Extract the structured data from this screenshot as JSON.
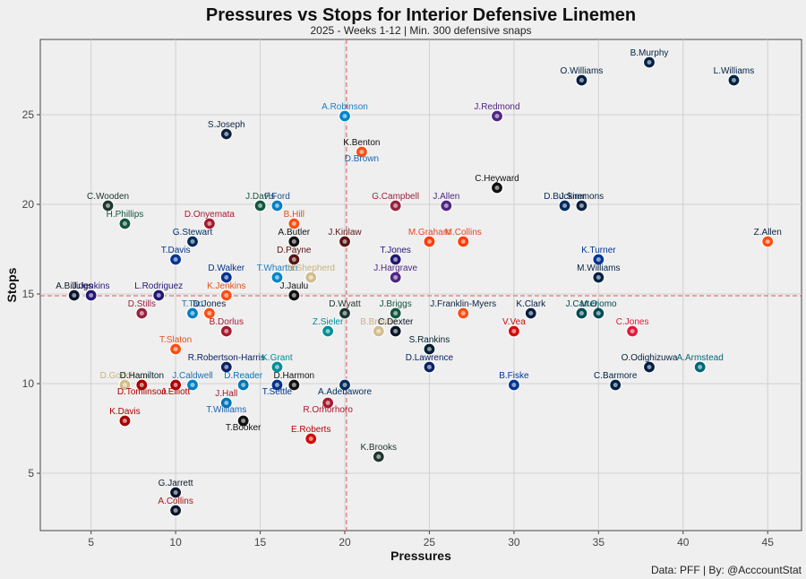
{
  "chart_data": {
    "type": "scatter",
    "title": "Pressures vs Stops for Interior Defensive Linemen",
    "subtitle": "2025 - Weeks 1-12 | Min. 300 defensive snaps",
    "xlabel": "Pressures",
    "ylabel": "Stops",
    "caption": "Data: PFF | By: @AcccountStat",
    "xlim": [
      2,
      47
    ],
    "ylim": [
      1.8,
      29.2
    ],
    "xticks": [
      5,
      10,
      15,
      20,
      25,
      30,
      35,
      40,
      45
    ],
    "yticks": [
      5,
      10,
      15,
      20,
      25
    ],
    "grid": true,
    "reference_lines": {
      "x": 20.1,
      "y": 14.9,
      "color": "#e05555",
      "style": "dashed"
    },
    "team_colors": {
      "SEA": "#002244",
      "DAL": "#041e42",
      "CAR": "#0085ca",
      "MIN": "#4f2683",
      "TEN": "#0c2340",
      "PIT": "#111111",
      "LV": "#111111",
      "NE": "#002244",
      "ARI": "#97233f",
      "BAL": "#241773",
      "LAC": "#0080c6",
      "NYJ": "#125740",
      "ATL": "#a71930",
      "CHI": "#0b162a",
      "GB": "#203731",
      "WAS": "#5a1414",
      "CIN": "#fb4f14",
      "IND": "#002c5f",
      "LAR": "#003594",
      "BUF": "#00338d",
      "CLE": "#ff3c00",
      "NO": "#d3bc8d",
      "DEN": "#fb4f14",
      "HOU": "#03202f",
      "MIA": "#008e97",
      "NYG": "#0b2265",
      "KC": "#e31837",
      "JAX": "#006778",
      "SF": "#aa0000",
      "DET": "#0076b6",
      "TB": "#d50a0a",
      "PHI": "#004c54"
    },
    "points": [
      {
        "label": "B.Murphy",
        "x": 38,
        "y": 28,
        "team": "SEA",
        "color": "#002244"
      },
      {
        "label": "L.Williams",
        "x": 43,
        "y": 27,
        "team": "SEA",
        "color": "#002244"
      },
      {
        "label": "O.Williams",
        "x": 34,
        "y": 27,
        "team": "DAL",
        "color": "#041e42"
      },
      {
        "label": "A.Robinson",
        "x": 20,
        "y": 25,
        "team": "CAR",
        "color": "#1a7fc1"
      },
      {
        "label": "J.Redmond",
        "x": 29,
        "y": 25,
        "team": "MIN",
        "color": "#4f2683"
      },
      {
        "label": "S.Joseph",
        "x": 13,
        "y": 24,
        "team": "TEN",
        "color": "#0c2340"
      },
      {
        "label": "K.Benton",
        "x": 21,
        "y": 23,
        "team": "PIT",
        "color": "#111111"
      },
      {
        "label": "D.Brown",
        "x": 21,
        "y": 23,
        "team": "DEN",
        "color": "#1a63b0",
        "label_below": true
      },
      {
        "label": "C.Heyward",
        "x": 29,
        "y": 21,
        "team": "PIT",
        "color": "#111111"
      },
      {
        "label": "C.Wooden",
        "x": 6,
        "y": 20,
        "team": "GB",
        "color": "#203731"
      },
      {
        "label": "J.Davis",
        "x": 15,
        "y": 20,
        "team": "NYJ",
        "color": "#125740"
      },
      {
        "label": "P.Ford",
        "x": 16,
        "y": 20,
        "team": "LAC",
        "color": "#1f4e8c"
      },
      {
        "label": "G.Campbell",
        "x": 23,
        "y": 20,
        "team": "ARI",
        "color": "#97233f"
      },
      {
        "label": "J.Allen",
        "x": 26,
        "y": 20,
        "team": "MIN",
        "color": "#4f2683"
      },
      {
        "label": "D.Buckner",
        "x": 33,
        "y": 20,
        "team": "IND",
        "color": "#002c5f"
      },
      {
        "label": "J.Simmons",
        "x": 34,
        "y": 20,
        "team": "TEN",
        "color": "#0c2340"
      },
      {
        "label": "H.Phillips",
        "x": 7,
        "y": 19,
        "team": "NYJ",
        "color": "#125740"
      },
      {
        "label": "D.Onyemata",
        "x": 12,
        "y": 19,
        "team": "ATL",
        "color": "#a71930"
      },
      {
        "label": "B.Hill",
        "x": 17,
        "y": 19,
        "team": "CIN",
        "color": "#e0521a"
      },
      {
        "label": "Z.Allen",
        "x": 45,
        "y": 18,
        "team": "DEN",
        "color": "#0a2343"
      },
      {
        "label": "G.Stewart",
        "x": 11,
        "y": 18,
        "team": "IND",
        "color": "#002c5f"
      },
      {
        "label": "A.Butler",
        "x": 17,
        "y": 18,
        "team": "LV",
        "color": "#111111"
      },
      {
        "label": "J.Kinlaw",
        "x": 20,
        "y": 18,
        "team": "WAS",
        "color": "#5a1414"
      },
      {
        "label": "M.Graham",
        "x": 25,
        "y": 18,
        "team": "CLE",
        "color": "#e5461f"
      },
      {
        "label": "M.Collins",
        "x": 27,
        "y": 18,
        "team": "CLE",
        "color": "#e5461f"
      },
      {
        "label": "T.Davis",
        "x": 10,
        "y": 17,
        "team": "LAR",
        "color": "#003594"
      },
      {
        "label": "D.Payne",
        "x": 17,
        "y": 17,
        "team": "WAS",
        "color": "#5a1414"
      },
      {
        "label": "T.Jones",
        "x": 23,
        "y": 17,
        "team": "BAL",
        "color": "#241773"
      },
      {
        "label": "K.Turner",
        "x": 35,
        "y": 17,
        "team": "LAR",
        "color": "#003594"
      },
      {
        "label": "D.Walker",
        "x": 13,
        "y": 16,
        "team": "BUF",
        "color": "#00338d"
      },
      {
        "label": "T.Wharton",
        "x": 16,
        "y": 16,
        "team": "CAR",
        "color": "#1a7fc1"
      },
      {
        "label": "N.Shepherd",
        "x": 18,
        "y": 16,
        "team": "NO",
        "color": "#c9b27c"
      },
      {
        "label": "J.Hargrave",
        "x": 23,
        "y": 16,
        "team": "MIN",
        "color": "#4f2683"
      },
      {
        "label": "M.Williams",
        "x": 35,
        "y": 16,
        "team": "SEA",
        "color": "#002244"
      },
      {
        "label": "A.Billings",
        "x": 4,
        "y": 15,
        "team": "CHI",
        "color": "#0b162a"
      },
      {
        "label": "J.Jenkins",
        "x": 5,
        "y": 15,
        "team": "BAL",
        "color": "#241773"
      },
      {
        "label": "L.Rodriguez",
        "x": 9,
        "y": 15,
        "team": "BAL",
        "color": "#241773"
      },
      {
        "label": "K.Jenkins",
        "x": 13,
        "y": 15,
        "team": "CIN",
        "color": "#e0521a"
      },
      {
        "label": "J.Jaulu",
        "x": 17,
        "y": 15,
        "team": "LV",
        "color": "#111111"
      },
      {
        "label": "D.Stills",
        "x": 8,
        "y": 14,
        "team": "ARI",
        "color": "#97233f"
      },
      {
        "label": "T.Tart",
        "x": 11,
        "y": 14,
        "team": "LAC",
        "color": "#1f6fb0"
      },
      {
        "label": "D.Jones",
        "x": 12,
        "y": 14,
        "team": "DEN",
        "color": "#0a2343"
      },
      {
        "label": "D.Wyatt",
        "x": 20,
        "y": 14,
        "team": "GB",
        "color": "#203731"
      },
      {
        "label": "J.Briggs",
        "x": 23,
        "y": 14,
        "team": "NYJ",
        "color": "#125740"
      },
      {
        "label": "J.Franklin-Myers",
        "x": 27,
        "y": 14,
        "team": "DEN",
        "color": "#0a2343"
      },
      {
        "label": "K.Clark",
        "x": 31,
        "y": 14,
        "team": "DAL",
        "color": "#041e42"
      },
      {
        "label": "J.Carter",
        "x": 34,
        "y": 14,
        "team": "PHI",
        "color": "#004c54"
      },
      {
        "label": "M.Ojomo",
        "x": 35,
        "y": 14,
        "team": "PHI",
        "color": "#004c54"
      },
      {
        "label": "B.Dorlus",
        "x": 13,
        "y": 13,
        "team": "ATL",
        "color": "#a71930"
      },
      {
        "label": "Z.Sieler",
        "x": 19,
        "y": 13,
        "team": "MIA",
        "color": "#008e97"
      },
      {
        "label": "B.Bresee",
        "x": 22,
        "y": 13,
        "team": "NO",
        "color": "#c9b27c"
      },
      {
        "label": "C.Dexter",
        "x": 23,
        "y": 13,
        "team": "CHI",
        "color": "#0b162a"
      },
      {
        "label": "V.Vea",
        "x": 30,
        "y": 13,
        "team": "TB",
        "color": "#d50a0a"
      },
      {
        "label": "C.Jones",
        "x": 37,
        "y": 13,
        "team": "KC",
        "color": "#e31837"
      },
      {
        "label": "T.Slaton",
        "x": 10,
        "y": 12,
        "team": "CIN",
        "color": "#e0521a"
      },
      {
        "label": "S.Rankins",
        "x": 25,
        "y": 12,
        "team": "HOU",
        "color": "#03202f"
      },
      {
        "label": "R.Robertson-Harris",
        "x": 13,
        "y": 11,
        "team": "NYG",
        "color": "#0b2265"
      },
      {
        "label": "K.Grant",
        "x": 16,
        "y": 11,
        "team": "MIA",
        "color": "#008e97"
      },
      {
        "label": "D.Lawrence",
        "x": 25,
        "y": 11,
        "team": "NYG",
        "color": "#0b2265"
      },
      {
        "label": "O.Odighizuwa",
        "x": 38,
        "y": 11,
        "team": "DAL",
        "color": "#041e42"
      },
      {
        "label": "A.Armstead",
        "x": 41,
        "y": 11,
        "team": "JAX",
        "color": "#006778"
      },
      {
        "label": "D.Godchaux",
        "x": 7,
        "y": 10,
        "team": "NO",
        "color": "#c9b27c"
      },
      {
        "label": "D.Hamilton",
        "x": 8,
        "y": 10,
        "team": "HOU",
        "color": "#03202f"
      },
      {
        "label": "J.Caldwell",
        "x": 11,
        "y": 10,
        "team": "LAC",
        "color": "#1f6fb0"
      },
      {
        "label": "D.Reader",
        "x": 14,
        "y": 10,
        "team": "DET",
        "color": "#0076b6"
      },
      {
        "label": "D.Harmon",
        "x": 17,
        "y": 10,
        "team": "PIT",
        "color": "#111111"
      },
      {
        "label": "B.Fiske",
        "x": 30,
        "y": 10,
        "team": "LAR",
        "color": "#003594"
      },
      {
        "label": "C.Barmore",
        "x": 36,
        "y": 10,
        "team": "NE",
        "color": "#002244"
      },
      {
        "label": "D.Tomlinson",
        "x": 8,
        "y": 10,
        "team": "SF",
        "color": "#aa0000",
        "label_below": true
      },
      {
        "label": "J.Elliott",
        "x": 10,
        "y": 10,
        "team": "SF",
        "color": "#aa0000",
        "label_below": true
      },
      {
        "label": "T.Settle",
        "x": 16,
        "y": 10,
        "team": "BUF",
        "color": "#00338d",
        "label_below": true
      },
      {
        "label": "A.Adebawore",
        "x": 20,
        "y": 10,
        "team": "IND",
        "color": "#002c5f",
        "label_below": true
      },
      {
        "label": "J.Hall",
        "x": 13,
        "y": 9,
        "team": "ATL",
        "color": "#a71930"
      },
      {
        "label": "R.Orhorhoro",
        "x": 19,
        "y": 9,
        "team": "ATL",
        "color": "#a71930",
        "label_below": true
      },
      {
        "label": "T.Williams",
        "x": 13,
        "y": 9,
        "team": "DET",
        "color": "#1a63b0",
        "label_below": true
      },
      {
        "label": "K.Davis",
        "x": 7,
        "y": 8,
        "team": "SF",
        "color": "#aa0000"
      },
      {
        "label": "T.Booker",
        "x": 14,
        "y": 8,
        "team": "LV",
        "color": "#111111",
        "label_below": true
      },
      {
        "label": "E.Roberts",
        "x": 18,
        "y": 7,
        "team": "TB",
        "color": "#b00a0a"
      },
      {
        "label": "K.Brooks",
        "x": 22,
        "y": 6,
        "team": "GB",
        "color": "#203731"
      },
      {
        "label": "G.Jarrett",
        "x": 10,
        "y": 4,
        "team": "CHI",
        "color": "#0b162a"
      },
      {
        "label": "A.Collins",
        "x": 10,
        "y": 3,
        "team": "CHI",
        "color": "#aa1111"
      }
    ]
  }
}
